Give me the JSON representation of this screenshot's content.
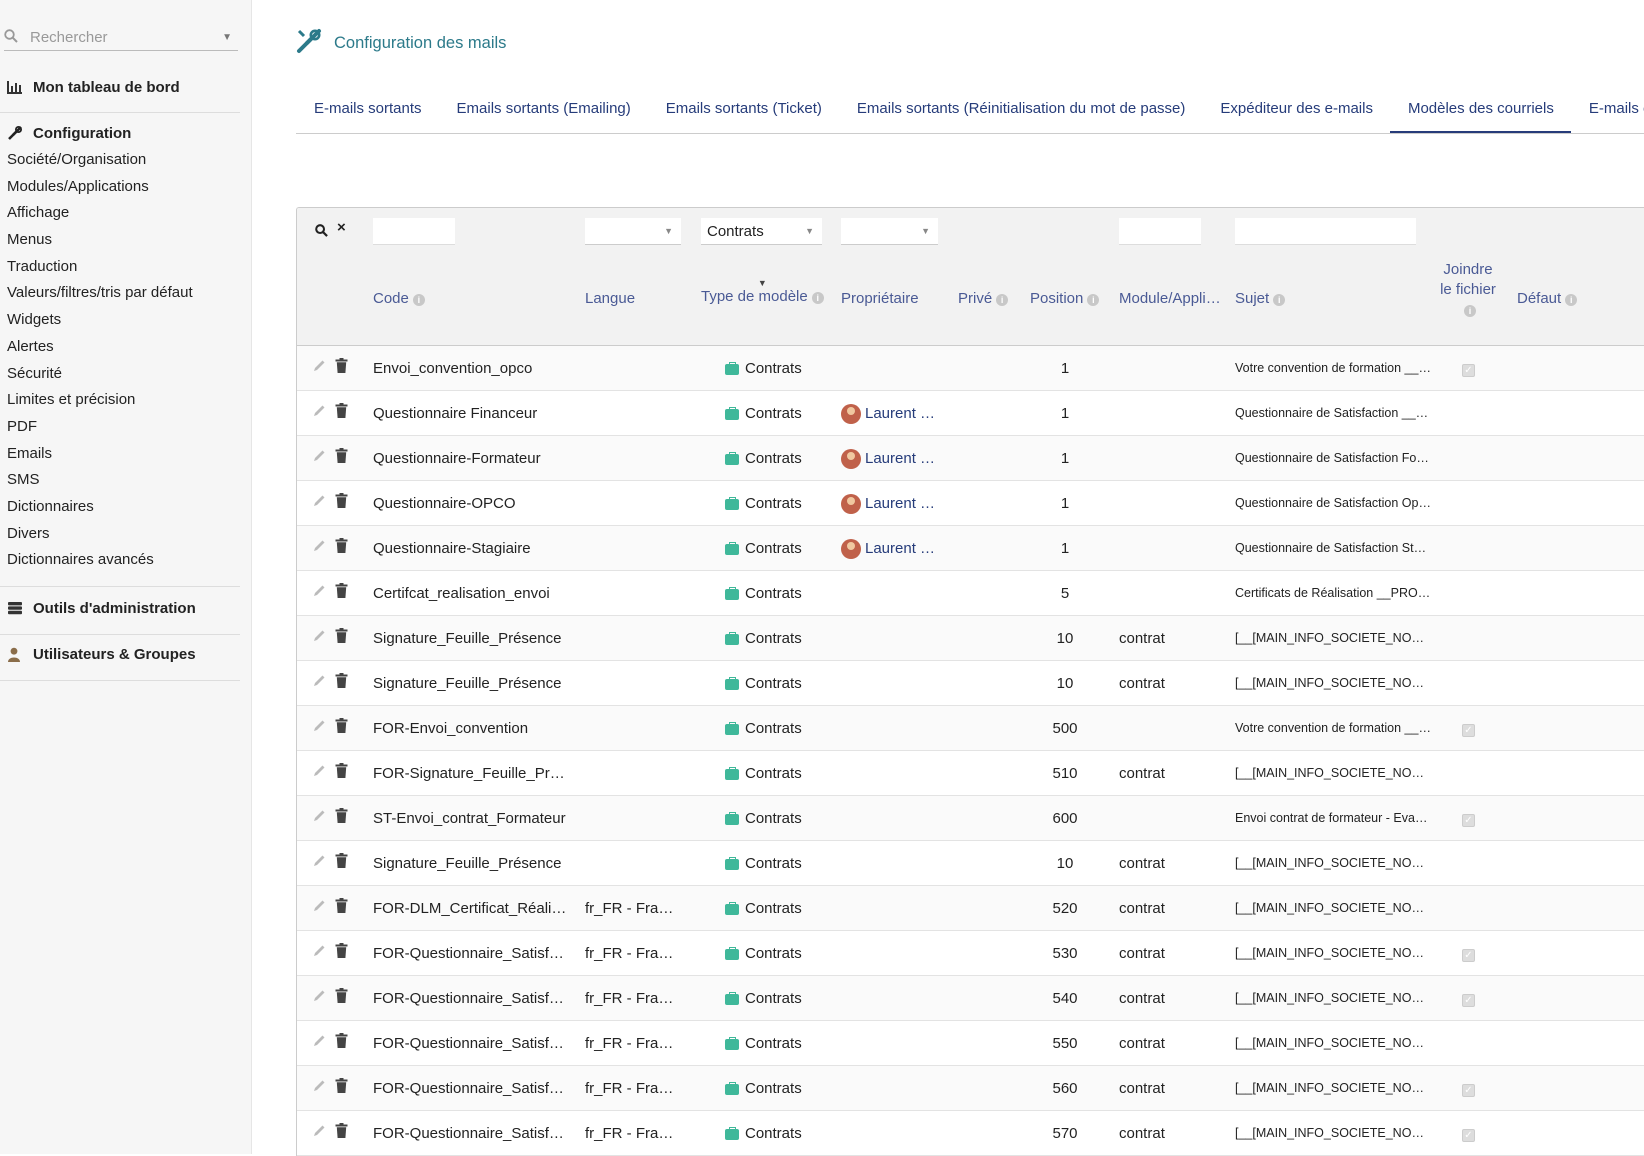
{
  "sidebar": {
    "search_placeholder": "Rechercher",
    "dashboard": "Mon tableau de bord",
    "config_head": "Configuration",
    "config_items": [
      "Société/Organisation",
      "Modules/Applications",
      "Affichage",
      "Menus",
      "Traduction",
      "Valeurs/filtres/tris par défaut",
      "Widgets",
      "Alertes",
      "Sécurité",
      "Limites et précision",
      "PDF",
      "Emails",
      "SMS",
      "Dictionnaires",
      "Divers",
      "Dictionnaires avancés"
    ],
    "admin_tools": "Outils d'administration",
    "users_groups": "Utilisateurs & Groupes"
  },
  "page": {
    "title": "Configuration des mails",
    "tabs": [
      "E-mails sortants",
      "Emails sortants (Emailing)",
      "Emails sortants (Ticket)",
      "Emails sortants (Réinitialisation du mot de passe)",
      "Expéditeur des e-mails",
      "Modèles des courriels",
      "E-mails en"
    ],
    "active_tab": 5
  },
  "table": {
    "filter_type_value": "Contrats",
    "headers": {
      "code": "Code",
      "langue": "Langue",
      "type": "Type de modèle",
      "proprietaire": "Propriétaire",
      "prive": "Privé",
      "position": "Position",
      "module": "Module/Appli…",
      "sujet": "Sujet",
      "joindre": "Joindre le fichier",
      "defaut": "Défaut"
    },
    "rows": [
      {
        "code": "Envoi_convention_opco",
        "langue": "",
        "type": "Contrats",
        "owner": "",
        "position": "1",
        "module": "",
        "sujet": "Votre convention de formation __…",
        "joindre": true
      },
      {
        "code": "Questionnaire Financeur",
        "langue": "",
        "type": "Contrats",
        "owner": "Laurent …",
        "position": "1",
        "module": "",
        "sujet": "Questionnaire de Satisfaction __…",
        "joindre": false
      },
      {
        "code": "Questionnaire-Formateur",
        "langue": "",
        "type": "Contrats",
        "owner": "Laurent …",
        "position": "1",
        "module": "",
        "sujet": "Questionnaire de Satisfaction For…",
        "joindre": false
      },
      {
        "code": "Questionnaire-OPCO",
        "langue": "",
        "type": "Contrats",
        "owner": "Laurent …",
        "position": "1",
        "module": "",
        "sujet": "Questionnaire de Satisfaction Op…",
        "joindre": false
      },
      {
        "code": "Questionnaire-Stagiaire",
        "langue": "",
        "type": "Contrats",
        "owner": "Laurent …",
        "position": "1",
        "module": "",
        "sujet": "Questionnaire de Satisfaction Sta…",
        "joindre": false
      },
      {
        "code": "Certifcat_realisation_envoi",
        "langue": "",
        "type": "Contrats",
        "owner": "",
        "position": "5",
        "module": "",
        "sujet": "Certificats de Réalisation __PRO…",
        "joindre": false
      },
      {
        "code": "Signature_Feuille_Présence",
        "langue": "",
        "type": "Contrats",
        "owner": "",
        "position": "10",
        "module": "contrat",
        "sujet": "[__[MAIN_INFO_SOCIETE_NOM…",
        "joindre": false
      },
      {
        "code": "Signature_Feuille_Présence",
        "langue": "",
        "type": "Contrats",
        "owner": "",
        "position": "10",
        "module": "contrat",
        "sujet": "[__[MAIN_INFO_SOCIETE_NOM…",
        "joindre": false
      },
      {
        "code": "FOR-Envoi_convention",
        "langue": "",
        "type": "Contrats",
        "owner": "",
        "position": "500",
        "module": "",
        "sujet": "Votre convention de formation __…",
        "joindre": true
      },
      {
        "code": "FOR-Signature_Feuille_Pré…",
        "langue": "",
        "type": "Contrats",
        "owner": "",
        "position": "510",
        "module": "contrat",
        "sujet": "[__[MAIN_INFO_SOCIETE_NOM…",
        "joindre": false
      },
      {
        "code": "ST-Envoi_contrat_Formateur",
        "langue": "",
        "type": "Contrats",
        "owner": "",
        "position": "600",
        "module": "",
        "sujet": "Envoi contrat de formateur - Evari…",
        "joindre": true
      },
      {
        "code": "Signature_Feuille_Présence",
        "langue": "",
        "type": "Contrats",
        "owner": "",
        "position": "10",
        "module": "contrat",
        "sujet": "[__[MAIN_INFO_SOCIETE_NOM…",
        "joindre": false
      },
      {
        "code": "FOR-DLM_Certificat_Réalis…",
        "langue": "fr_FR - Fran…",
        "type": "Contrats",
        "owner": "",
        "position": "520",
        "module": "contrat",
        "sujet": "[__[MAIN_INFO_SOCIETE_NOM…",
        "joindre": false
      },
      {
        "code": "FOR-Questionnaire_Satisfa…",
        "langue": "fr_FR - Fran…",
        "type": "Contrats",
        "owner": "",
        "position": "530",
        "module": "contrat",
        "sujet": "[__[MAIN_INFO_SOCIETE_NOM…",
        "joindre": true
      },
      {
        "code": "FOR-Questionnaire_Satisfa…",
        "langue": "fr_FR - Fran…",
        "type": "Contrats",
        "owner": "",
        "position": "540",
        "module": "contrat",
        "sujet": "[__[MAIN_INFO_SOCIETE_NOM…",
        "joindre": true
      },
      {
        "code": "FOR-Questionnaire_Satisfa…",
        "langue": "fr_FR - Fran…",
        "type": "Contrats",
        "owner": "",
        "position": "550",
        "module": "contrat",
        "sujet": "[__[MAIN_INFO_SOCIETE_NOM…",
        "joindre": false
      },
      {
        "code": "FOR-Questionnaire_Satisfa…",
        "langue": "fr_FR - Fran…",
        "type": "Contrats",
        "owner": "",
        "position": "560",
        "module": "contrat",
        "sujet": "[__[MAIN_INFO_SOCIETE_NOM…",
        "joindre": true
      },
      {
        "code": "FOR-Questionnaire_Satisfa…",
        "langue": "fr_FR - Fran…",
        "type": "Contrats",
        "owner": "",
        "position": "570",
        "module": "contrat",
        "sujet": "[__[MAIN_INFO_SOCIETE_NOM…",
        "joindre": true
      }
    ]
  }
}
